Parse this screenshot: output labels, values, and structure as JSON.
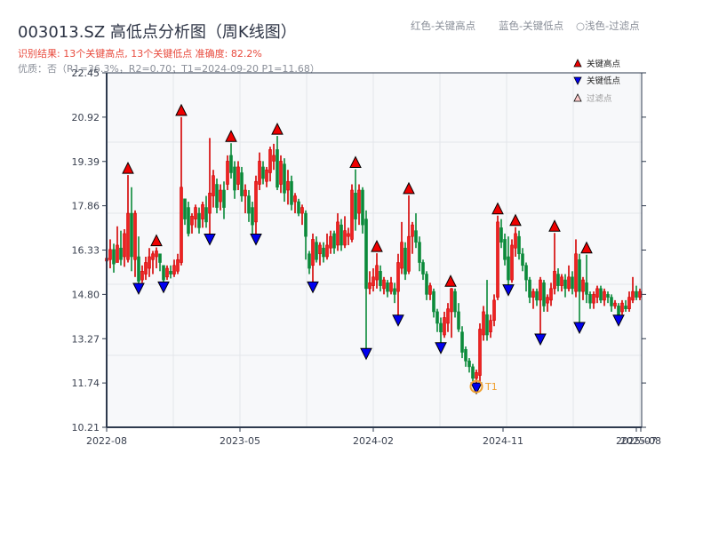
{
  "header": {
    "title": "003013.SZ 高低点分析图（周K线图）",
    "result_line": "识别结果: 13个关键高点, 13个关键低点   准确度: 82.2%",
    "quality_line": "优质：否（R1=36.3%，R2=0.70；T1=2024-09-20 P1=11.68）"
  },
  "top_legend": {
    "red": "红色-关键高点",
    "blue": "蓝色-关键低点",
    "light": "○浅色-过滤点"
  },
  "colors": {
    "up": "#d40000",
    "up_fill": "#ee2222",
    "down": "#0b8a3a",
    "high_marker": "#ee0000",
    "low_marker": "#0000ee",
    "filtered_marker": "#ffcccc",
    "t1_ring": "#f0a030",
    "axis": "#2e3a4e",
    "grid": "#e3e6ea",
    "plot_bg": "#f7f8fa"
  },
  "chart_data": {
    "type": "candlestick",
    "title": "003013.SZ 高低点分析图（周K线图）",
    "xlabel": "",
    "ylabel": "",
    "ylim": [
      10.21,
      22.45
    ],
    "y_ticks": [
      "22.45",
      "20.92",
      "19.39",
      "17.86",
      "16.33",
      "14.80",
      "13.27",
      "11.74",
      "10.21"
    ],
    "x_ticks": [
      "2022-08",
      "2023-05",
      "2024-02",
      "2024-11",
      "2025-07",
      "2025-08"
    ],
    "grid": true,
    "legend": {
      "position": "top-right",
      "entries": [
        {
          "label": "关键高点",
          "marker": "triangle-up",
          "color": "#ee0000"
        },
        {
          "label": "关键低点",
          "marker": "triangle-down",
          "color": "#0000ee"
        },
        {
          "label": "过滤点",
          "marker": "triangle-up-hollow",
          "color": "#ffcccc"
        }
      ]
    },
    "key_highs": [
      {
        "x": 144,
        "price": 18.92
      },
      {
        "x": 176,
        "price": 16.42
      },
      {
        "x": 204,
        "price": 20.92
      },
      {
        "x": 260,
        "price": 20.02
      },
      {
        "x": 312,
        "price": 20.27
      },
      {
        "x": 400,
        "price": 19.12
      },
      {
        "x": 424,
        "price": 16.22
      },
      {
        "x": 460,
        "price": 18.22
      },
      {
        "x": 507,
        "price": 15.02
      },
      {
        "x": 560,
        "price": 17.52
      },
      {
        "x": 580,
        "price": 17.12
      },
      {
        "x": 624,
        "price": 16.92
      },
      {
        "x": 660,
        "price": 16.17
      }
    ],
    "key_lows": [
      {
        "x": 156,
        "price": 15.12
      },
      {
        "x": 184,
        "price": 15.17
      },
      {
        "x": 236,
        "price": 16.82
      },
      {
        "x": 288,
        "price": 16.82
      },
      {
        "x": 352,
        "price": 15.17
      },
      {
        "x": 412,
        "price": 12.87
      },
      {
        "x": 448,
        "price": 14.02
      },
      {
        "x": 496,
        "price": 13.07
      },
      {
        "x": 536,
        "price": 11.68
      },
      {
        "x": 572,
        "price": 15.07
      },
      {
        "x": 608,
        "price": 13.37
      },
      {
        "x": 652,
        "price": 13.77
      },
      {
        "x": 696,
        "price": 14.02
      }
    ],
    "annotation": {
      "label": "T1",
      "x": 536,
      "price": 11.68,
      "date": "2024-09-20"
    },
    "candles": [
      [
        120,
        15.95,
        16.05,
        16.25,
        15.8
      ],
      [
        124,
        16.0,
        16.35,
        16.7,
        15.7
      ],
      [
        128,
        16.35,
        15.85,
        16.55,
        15.55
      ],
      [
        132,
        15.9,
        16.5,
        17.15,
        15.9
      ],
      [
        136,
        16.4,
        16.0,
        17.0,
        15.8
      ],
      [
        140,
        16.1,
        16.9,
        17.05,
        15.75
      ],
      [
        144,
        16.0,
        17.6,
        18.92,
        15.9
      ],
      [
        148,
        17.6,
        16.1,
        18.5,
        15.6
      ],
      [
        152,
        16.0,
        17.6,
        17.7,
        15.4
      ],
      [
        156,
        16.1,
        15.25,
        16.8,
        15.12
      ],
      [
        160,
        15.3,
        15.6,
        15.8,
        15.2
      ],
      [
        164,
        15.5,
        15.9,
        16.1,
        15.3
      ],
      [
        168,
        15.7,
        16.1,
        16.4,
        15.4
      ],
      [
        172,
        16.0,
        16.2,
        16.3,
        15.5
      ],
      [
        176,
        16.1,
        16.3,
        16.42,
        15.7
      ],
      [
        180,
        16.2,
        15.9,
        16.2,
        15.6
      ],
      [
        184,
        15.8,
        15.3,
        15.8,
        15.17
      ],
      [
        188,
        15.4,
        15.7,
        15.8,
        15.3
      ],
      [
        192,
        15.6,
        15.5,
        15.8,
        15.35
      ],
      [
        196,
        15.5,
        15.8,
        16.0,
        15.4
      ],
      [
        200,
        15.6,
        16.0,
        16.2,
        15.5
      ],
      [
        204,
        15.9,
        18.5,
        20.92,
        15.8
      ],
      [
        208,
        18.1,
        17.4,
        18.1,
        17.2
      ],
      [
        212,
        17.8,
        16.9,
        18.0,
        16.8
      ],
      [
        216,
        17.2,
        17.5,
        17.6,
        16.9
      ],
      [
        220,
        17.4,
        17.8,
        17.9,
        17.1
      ],
      [
        224,
        17.6,
        17.1,
        17.8,
        16.9
      ],
      [
        228,
        17.4,
        17.9,
        18.0,
        17.1
      ],
      [
        232,
        17.8,
        17.3,
        18.2,
        17.1
      ],
      [
        236,
        17.6,
        18.3,
        20.2,
        16.82
      ],
      [
        240,
        18.2,
        18.9,
        19.1,
        17.8
      ],
      [
        244,
        18.6,
        17.8,
        18.8,
        17.6
      ],
      [
        248,
        18.0,
        18.4,
        18.6,
        17.7
      ],
      [
        252,
        18.4,
        17.8,
        18.7,
        17.4
      ],
      [
        256,
        18.6,
        19.4,
        19.6,
        18.4
      ],
      [
        260,
        19.6,
        19.0,
        20.02,
        18.8
      ],
      [
        264,
        19.2,
        18.4,
        19.4,
        18.1
      ],
      [
        268,
        18.6,
        19.2,
        19.4,
        18.4
      ],
      [
        272,
        19.0,
        18.2,
        19.2,
        18.0
      ],
      [
        276,
        18.2,
        18.4,
        18.6,
        17.6
      ],
      [
        280,
        18.2,
        17.6,
        18.4,
        17.3
      ],
      [
        284,
        17.8,
        17.2,
        18.0,
        16.9
      ],
      [
        288,
        17.3,
        18.7,
        18.9,
        16.82
      ],
      [
        292,
        18.6,
        19.4,
        19.7,
        18.4
      ],
      [
        296,
        19.2,
        18.8,
        19.4,
        18.6
      ],
      [
        300,
        18.7,
        19.1,
        19.2,
        18.5
      ],
      [
        304,
        19.0,
        19.8,
        19.9,
        18.7
      ],
      [
        308,
        19.4,
        19.6,
        20.0,
        19.1
      ],
      [
        312,
        19.8,
        18.5,
        20.27,
        18.4
      ],
      [
        316,
        18.6,
        19.4,
        19.6,
        18.3
      ],
      [
        320,
        19.3,
        18.3,
        19.5,
        18.0
      ],
      [
        324,
        18.4,
        18.7,
        19.1,
        17.9
      ],
      [
        328,
        18.7,
        17.9,
        18.9,
        17.7
      ],
      [
        332,
        18.0,
        18.2,
        18.3,
        17.6
      ],
      [
        336,
        18.0,
        17.6,
        18.1,
        17.5
      ],
      [
        340,
        17.6,
        17.8,
        17.9,
        17.2
      ],
      [
        344,
        17.6,
        16.8,
        17.7,
        16.0
      ],
      [
        348,
        16.2,
        15.7,
        16.3,
        15.5
      ],
      [
        352,
        15.8,
        16.7,
        16.9,
        15.17
      ],
      [
        356,
        16.6,
        16.0,
        16.8,
        15.9
      ],
      [
        360,
        16.2,
        16.5,
        16.6,
        15.8
      ],
      [
        364,
        16.4,
        16.1,
        16.6,
        15.9
      ],
      [
        368,
        16.1,
        16.5,
        16.9,
        16.0
      ],
      [
        372,
        16.4,
        16.8,
        17.0,
        16.2
      ],
      [
        376,
        16.9,
        16.4,
        17.0,
        16.2
      ],
      [
        380,
        16.5,
        17.3,
        17.6,
        16.3
      ],
      [
        384,
        17.2,
        16.5,
        17.4,
        16.3
      ],
      [
        388,
        16.5,
        17.0,
        17.5,
        16.4
      ],
      [
        392,
        16.8,
        16.9,
        17.1,
        16.5
      ],
      [
        396,
        16.7,
        18.4,
        18.6,
        16.6
      ],
      [
        400,
        18.3,
        17.4,
        19.12,
        17.0
      ],
      [
        404,
        17.6,
        18.4,
        18.6,
        17.2
      ],
      [
        408,
        18.4,
        17.2,
        18.5,
        16.9
      ],
      [
        412,
        17.4,
        15.0,
        17.7,
        12.87
      ],
      [
        416,
        15.0,
        15.2,
        15.6,
        14.8
      ],
      [
        420,
        15.1,
        15.4,
        15.7,
        14.9
      ],
      [
        424,
        15.3,
        15.8,
        16.22,
        15.0
      ],
      [
        428,
        15.6,
        15.1,
        15.8,
        14.9
      ],
      [
        432,
        15.0,
        15.3,
        15.4,
        14.8
      ],
      [
        436,
        15.2,
        14.9,
        15.3,
        14.7
      ],
      [
        440,
        14.9,
        15.2,
        15.4,
        14.8
      ],
      [
        444,
        15.0,
        14.8,
        15.2,
        14.5
      ],
      [
        448,
        14.9,
        15.9,
        16.2,
        14.02
      ],
      [
        452,
        15.7,
        16.6,
        17.3,
        15.5
      ],
      [
        456,
        16.4,
        15.5,
        16.6,
        15.3
      ],
      [
        460,
        15.6,
        16.8,
        18.22,
        15.5
      ],
      [
        464,
        16.8,
        17.2,
        17.3,
        16.2
      ],
      [
        468,
        17.0,
        16.6,
        17.6,
        16.4
      ],
      [
        472,
        16.6,
        15.9,
        16.8,
        15.6
      ],
      [
        476,
        15.9,
        15.5,
        16.0,
        15.3
      ],
      [
        480,
        15.5,
        14.8,
        15.6,
        14.6
      ],
      [
        484,
        14.8,
        15.1,
        15.2,
        14.6
      ],
      [
        488,
        14.9,
        14.2,
        15.0,
        14.0
      ],
      [
        492,
        14.2,
        13.8,
        14.3,
        13.5
      ],
      [
        496,
        13.8,
        13.5,
        14.0,
        13.07
      ],
      [
        500,
        13.4,
        14.0,
        14.2,
        13.3
      ],
      [
        504,
        13.8,
        14.3,
        14.5,
        13.5
      ],
      [
        508,
        14.2,
        15.0,
        15.02,
        13.3
      ],
      [
        512,
        14.9,
        14.2,
        15.0,
        14.0
      ],
      [
        516,
        14.2,
        13.6,
        14.5,
        13.5
      ],
      [
        520,
        13.5,
        12.8,
        13.7,
        12.6
      ],
      [
        524,
        12.9,
        12.5,
        13.0,
        12.3
      ],
      [
        528,
        12.5,
        12.3,
        12.6,
        12.1
      ],
      [
        532,
        12.3,
        11.9,
        12.4,
        11.8
      ],
      [
        536,
        11.9,
        12.1,
        12.2,
        11.68
      ],
      [
        540,
        12.0,
        13.6,
        13.8,
        11.7
      ],
      [
        544,
        13.4,
        14.2,
        14.4,
        13.2
      ],
      [
        548,
        14.1,
        13.4,
        15.3,
        13.2
      ],
      [
        552,
        13.5,
        13.9,
        14.1,
        13.3
      ],
      [
        556,
        13.9,
        14.6,
        14.8,
        13.7
      ],
      [
        560,
        14.7,
        17.3,
        17.52,
        14.6
      ],
      [
        564,
        17.1,
        16.6,
        17.4,
        16.4
      ],
      [
        568,
        16.7,
        16.0,
        16.9,
        15.8
      ],
      [
        572,
        16.1,
        15.3,
        16.8,
        15.07
      ],
      [
        576,
        15.3,
        16.5,
        16.7,
        15.2
      ],
      [
        580,
        16.4,
        16.9,
        17.12,
        16.1
      ],
      [
        584,
        16.8,
        16.2,
        17.0,
        16.0
      ],
      [
        588,
        16.2,
        15.8,
        16.4,
        15.6
      ],
      [
        592,
        15.8,
        15.3,
        15.9,
        14.9
      ],
      [
        596,
        15.3,
        14.7,
        15.4,
        14.5
      ],
      [
        600,
        14.7,
        14.9,
        15.0,
        14.3
      ],
      [
        604,
        14.9,
        14.6,
        15.0,
        14.4
      ],
      [
        608,
        14.6,
        15.3,
        15.4,
        13.37
      ],
      [
        612,
        15.2,
        14.4,
        15.3,
        14.2
      ],
      [
        616,
        14.5,
        14.7,
        14.8,
        14.2
      ],
      [
        620,
        14.6,
        15.0,
        15.2,
        14.4
      ],
      [
        624,
        15.0,
        15.6,
        16.92,
        14.8
      ],
      [
        628,
        15.5,
        15.1,
        15.7,
        14.9
      ],
      [
        632,
        15.1,
        15.4,
        15.5,
        14.9
      ],
      [
        636,
        15.3,
        15.0,
        15.5,
        14.7
      ],
      [
        640,
        15.0,
        15.4,
        15.8,
        14.9
      ],
      [
        644,
        15.4,
        15.0,
        15.6,
        14.8
      ],
      [
        648,
        14.9,
        16.2,
        16.7,
        14.7
      ],
      [
        652,
        16.0,
        14.9,
        16.2,
        13.77
      ],
      [
        656,
        14.9,
        15.3,
        15.4,
        14.6
      ],
      [
        660,
        15.2,
        14.8,
        16.17,
        14.5
      ],
      [
        664,
        14.8,
        14.5,
        14.9,
        14.3
      ],
      [
        668,
        14.5,
        14.8,
        14.9,
        14.3
      ],
      [
        672,
        14.7,
        15.0,
        15.1,
        14.5
      ],
      [
        676,
        15.0,
        14.6,
        15.1,
        14.5
      ],
      [
        680,
        14.6,
        14.9,
        15.0,
        14.4
      ],
      [
        684,
        14.8,
        14.7,
        14.9,
        14.5
      ],
      [
        688,
        14.7,
        14.4,
        14.8,
        14.2
      ],
      [
        692,
        14.4,
        14.5,
        14.6,
        14.3
      ],
      [
        696,
        14.4,
        14.1,
        14.5,
        14.02
      ],
      [
        700,
        14.2,
        14.5,
        14.6,
        14.1
      ],
      [
        704,
        14.4,
        14.3,
        14.6,
        14.2
      ],
      [
        708,
        14.3,
        14.7,
        14.9,
        14.2
      ],
      [
        712,
        14.6,
        14.9,
        15.4,
        14.5
      ],
      [
        716,
        14.9,
        14.7,
        15.1,
        14.6
      ],
      [
        720,
        14.7,
        14.9,
        15.0,
        14.6
      ]
    ]
  }
}
